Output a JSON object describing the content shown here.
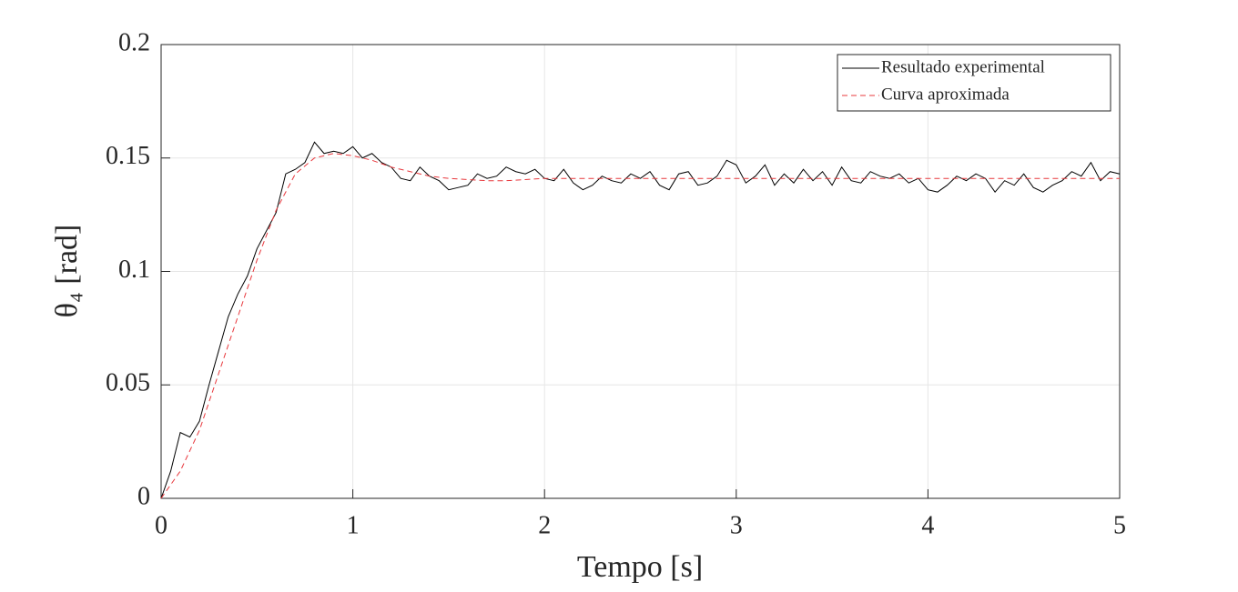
{
  "chart_data": {
    "type": "line",
    "xlabel": "Tempo  [s]",
    "ylabel": "θ₄  [rad]",
    "xlim": [
      0,
      5
    ],
    "ylim": [
      0,
      0.2
    ],
    "xticks": [
      0,
      1,
      2,
      3,
      4,
      5
    ],
    "yticks": [
      0,
      0.05,
      0.1,
      0.15,
      0.2
    ],
    "grid": true,
    "legend": "upper right",
    "series": [
      {
        "name": "Resultado experimental",
        "color": "#000000",
        "style": "solid",
        "x": [
          0,
          0.05,
          0.1,
          0.15,
          0.2,
          0.25,
          0.3,
          0.35,
          0.4,
          0.45,
          0.5,
          0.55,
          0.6,
          0.65,
          0.7,
          0.75,
          0.8,
          0.85,
          0.9,
          0.95,
          1,
          1.05,
          1.1,
          1.15,
          1.2,
          1.25,
          1.3,
          1.35,
          1.4,
          1.45,
          1.5,
          1.55,
          1.6,
          1.65,
          1.7,
          1.75,
          1.8,
          1.85,
          1.9,
          1.95,
          2,
          2.05,
          2.1,
          2.15,
          2.2,
          2.25,
          2.3,
          2.35,
          2.4,
          2.45,
          2.5,
          2.55,
          2.6,
          2.65,
          2.7,
          2.75,
          2.8,
          2.85,
          2.9,
          2.95,
          3,
          3.05,
          3.1,
          3.15,
          3.2,
          3.25,
          3.3,
          3.35,
          3.4,
          3.45,
          3.5,
          3.55,
          3.6,
          3.65,
          3.7,
          3.75,
          3.8,
          3.85,
          3.9,
          3.95,
          4,
          4.05,
          4.1,
          4.15,
          4.2,
          4.25,
          4.3,
          4.35,
          4.4,
          4.45,
          4.5,
          4.55,
          4.6,
          4.65,
          4.7,
          4.75,
          4.8,
          4.85,
          4.9,
          4.95,
          5
        ],
        "values": [
          0,
          0.012,
          0.029,
          0.027,
          0.034,
          0.05,
          0.065,
          0.08,
          0.09,
          0.098,
          0.11,
          0.118,
          0.126,
          0.143,
          0.145,
          0.148,
          0.157,
          0.152,
          0.153,
          0.152,
          0.155,
          0.15,
          0.152,
          0.148,
          0.146,
          0.141,
          0.14,
          0.146,
          0.142,
          0.14,
          0.136,
          0.137,
          0.138,
          0.143,
          0.141,
          0.142,
          0.146,
          0.144,
          0.143,
          0.145,
          0.141,
          0.14,
          0.145,
          0.139,
          0.136,
          0.138,
          0.142,
          0.14,
          0.139,
          0.143,
          0.141,
          0.144,
          0.138,
          0.136,
          0.143,
          0.144,
          0.138,
          0.139,
          0.142,
          0.149,
          0.147,
          0.139,
          0.142,
          0.147,
          0.138,
          0.143,
          0.139,
          0.145,
          0.14,
          0.144,
          0.138,
          0.146,
          0.14,
          0.139,
          0.144,
          0.142,
          0.141,
          0.143,
          0.139,
          0.141,
          0.136,
          0.135,
          0.138,
          0.142,
          0.14,
          0.143,
          0.141,
          0.135,
          0.14,
          0.138,
          0.143,
          0.137,
          0.135,
          0.138,
          0.14,
          0.144,
          0.142,
          0.148,
          0.14,
          0.144,
          0.143
        ]
      },
      {
        "name": "Curva aproximada",
        "color": "#e8383d",
        "style": "dashed",
        "x": [
          0,
          0.1,
          0.2,
          0.3,
          0.4,
          0.5,
          0.6,
          0.7,
          0.8,
          0.9,
          1,
          1.1,
          1.2,
          1.3,
          1.4,
          1.5,
          1.6,
          1.7,
          1.8,
          1.9,
          2,
          2.5,
          3,
          3.5,
          4,
          4.5,
          5
        ],
        "values": [
          0,
          0.012,
          0.03,
          0.055,
          0.08,
          0.105,
          0.127,
          0.143,
          0.15,
          0.152,
          0.151,
          0.149,
          0.146,
          0.144,
          0.142,
          0.141,
          0.1405,
          0.14,
          0.14,
          0.1405,
          0.141,
          0.141,
          0.141,
          0.141,
          0.141,
          0.141,
          0.141
        ]
      }
    ]
  }
}
